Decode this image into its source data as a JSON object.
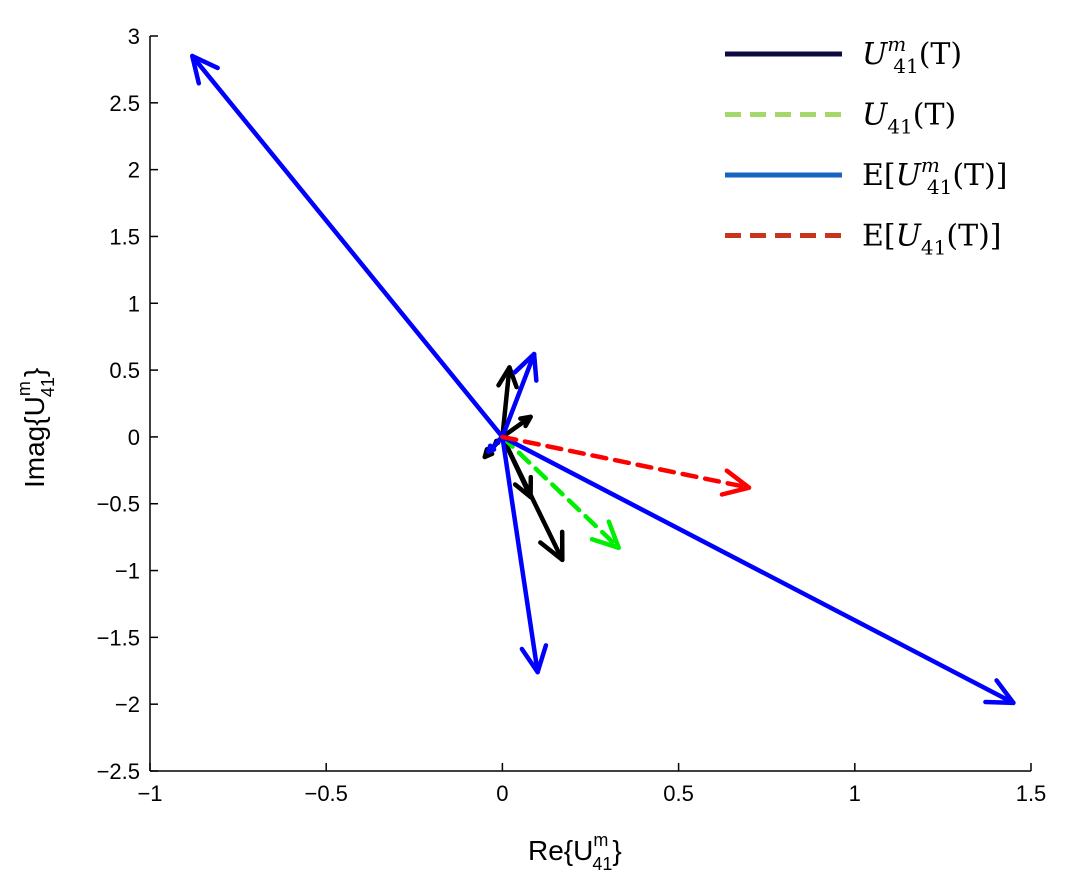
{
  "chart_data": {
    "type": "quiver",
    "title": "",
    "xlabel": "Re{U",
    "xlabel_sup": "m",
    "xlabel_sub": "41",
    "xlabel_close": "}",
    "ylabel": "Imag{U",
    "ylabel_sup": "m",
    "ylabel_sub": "41",
    "ylabel_close": "}",
    "xlim": [
      -1,
      1.5
    ],
    "ylim": [
      -2.5,
      3
    ],
    "x_ticks": [
      -1,
      -0.5,
      0,
      0.5,
      1,
      1.5
    ],
    "x_tick_labels": [
      "−1",
      "−0.5",
      "0",
      "0.5",
      "1",
      "1.5"
    ],
    "y_ticks": [
      -2.5,
      -2,
      -1.5,
      -1,
      -0.5,
      0,
      0.5,
      1,
      1.5,
      2,
      2.5,
      3
    ],
    "y_tick_labels": [
      "−2.5",
      "−2",
      "−1.5",
      "−1",
      "−0.5",
      "0",
      "0.5",
      "1",
      "1.5",
      "2",
      "2.5",
      "3"
    ],
    "grid": false,
    "legend_position": "top-right",
    "series": [
      {
        "name": "U_41^m(T)",
        "legend_main": "U",
        "legend_sup": "m",
        "legend_sub": "41",
        "legend_tail": "(T)",
        "legend_prefix": "",
        "legend_suffix": "",
        "color": "#000000",
        "legend_color": "#0b0b40",
        "dashed": false,
        "vectors": [
          [
            0.02,
            0.52
          ],
          [
            0.08,
            0.15
          ],
          [
            -0.05,
            -0.15
          ],
          [
            -0.02,
            -0.05
          ],
          [
            0.17,
            -0.92
          ],
          [
            0.08,
            -0.45
          ]
        ]
      },
      {
        "name": "U_41(T)",
        "legend_main": "U",
        "legend_sup": "",
        "legend_sub": "41",
        "legend_tail": "(T)",
        "legend_prefix": "",
        "legend_suffix": "",
        "color": "#00ee00",
        "legend_color": "#a4d86a",
        "dashed": true,
        "vectors": [
          [
            0.33,
            -0.83
          ]
        ]
      },
      {
        "name": "E[U_41^m(T)]",
        "legend_main": "U",
        "legend_sup": "m",
        "legend_sub": "41",
        "legend_tail": "(T)]",
        "legend_prefix": "E[",
        "legend_suffix": "",
        "color": "#0000ff",
        "legend_color": "#1565c0",
        "dashed": false,
        "vectors": [
          [
            -0.88,
            2.85
          ],
          [
            1.45,
            -1.99
          ],
          [
            0.1,
            -1.76
          ],
          [
            0.09,
            0.62
          ],
          [
            -0.04,
            -0.11
          ]
        ]
      },
      {
        "name": "E[U_41(T)]",
        "legend_main": "U",
        "legend_sup": "",
        "legend_sub": "41",
        "legend_tail": "(T)]",
        "legend_prefix": "E[",
        "legend_suffix": "",
        "color": "#ff0000",
        "legend_color": "#c8341c",
        "dashed": true,
        "vectors": [
          [
            0.7,
            -0.38
          ]
        ]
      }
    ]
  }
}
